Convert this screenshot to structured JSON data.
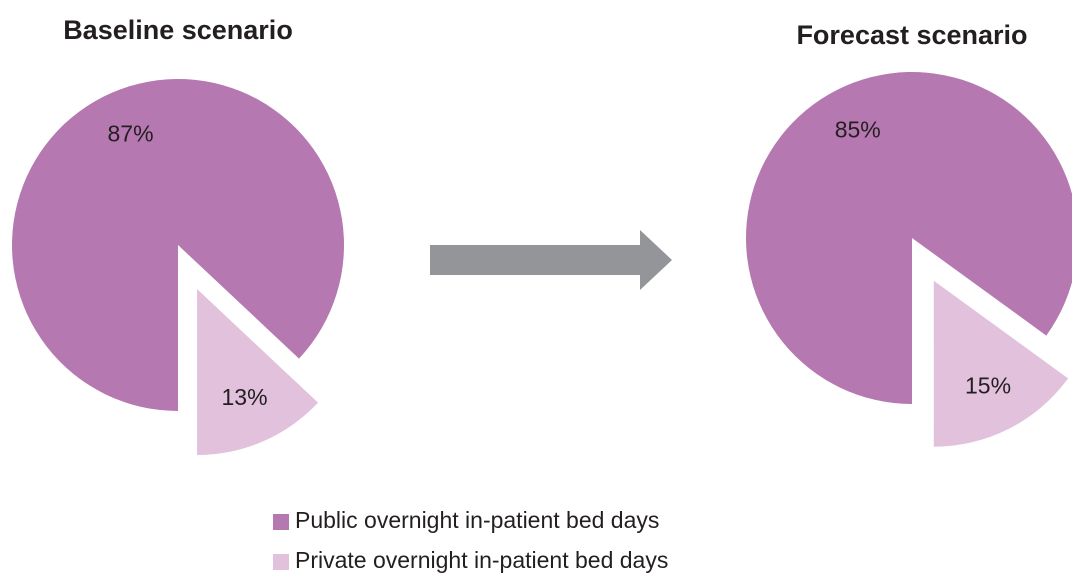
{
  "chart_data": [
    {
      "type": "pie",
      "title": "Baseline scenario",
      "categories": [
        "Public overnight in-patient bed days",
        "Private overnight in-patient bed days"
      ],
      "values": [
        87,
        13
      ],
      "value_labels": [
        "87%",
        "13%"
      ],
      "colors": [
        "#b678b0",
        "#e2c1dc"
      ]
    },
    {
      "type": "pie",
      "title": "Forecast scenario",
      "categories": [
        "Public overnight in-patient bed days",
        "Private overnight in-patient bed days"
      ],
      "values": [
        85,
        15
      ],
      "value_labels": [
        "85%",
        "15%"
      ],
      "colors": [
        "#b678b0",
        "#e2c1dc"
      ]
    }
  ]
}
